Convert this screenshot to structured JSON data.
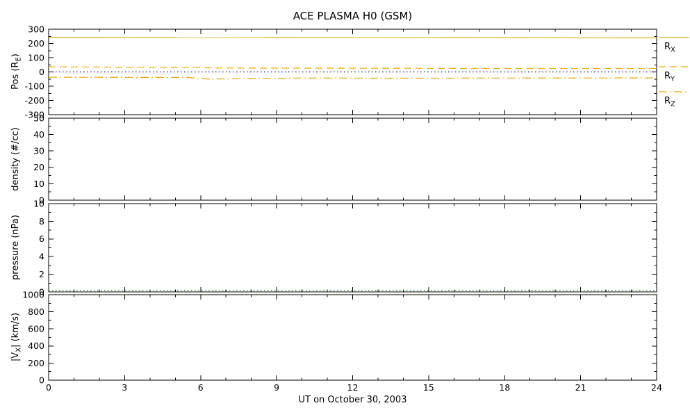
{
  "chart_data": {
    "type": "line",
    "title": "ACE PLASMA H0 (GSM)",
    "xlabel": "UT on October 30, 2003",
    "x_range": [
      0,
      24
    ],
    "xticks": [
      0,
      3,
      6,
      9,
      12,
      15,
      18,
      21,
      24
    ],
    "x_minor_step": 1,
    "panels": [
      {
        "id": "position",
        "ylabel": {
          "pre": "Pos (R",
          "sub": "E",
          "post": ")"
        },
        "ylim": [
          -300,
          300
        ],
        "yticks": [
          300,
          200,
          100,
          0,
          -100,
          -200,
          -300
        ],
        "series": [
          {
            "name": "R_X",
            "color": "#d4b106",
            "dash": "solid",
            "x": [
              0,
              24
            ],
            "y": [
              241,
              239
            ]
          },
          {
            "name": "R_Y",
            "color": "#f5a800",
            "dash": "dashed",
            "x": [
              0,
              2,
              4,
              6,
              6.5,
              8,
              12,
              16,
              20,
              24
            ],
            "y": [
              36,
              34,
              33,
              31,
              28,
              27,
              26,
              25,
              24,
              24
            ]
          },
          {
            "name": "zero-reference",
            "color": "#000066",
            "dash": "dotted",
            "x": [
              0,
              24
            ],
            "y": [
              0,
              0
            ]
          },
          {
            "name": "R_Z",
            "color": "#eda400",
            "dash": "dashdot",
            "x": [
              0,
              3,
              5.5,
              6.3,
              7,
              8,
              10,
              14,
              18,
              24
            ],
            "y": [
              -37,
              -38,
              -39,
              -50,
              -49,
              -46,
              -43,
              -44,
              -43,
              -42
            ]
          }
        ]
      },
      {
        "id": "density",
        "ylabel": {
          "pre": "density (#/cc)",
          "sub": "",
          "post": ""
        },
        "ylim": [
          0,
          50
        ],
        "yticks": [
          50,
          40,
          30,
          20,
          10,
          0
        ],
        "series": []
      },
      {
        "id": "pressure",
        "ylabel": {
          "pre": "pressure (nPa)",
          "sub": "",
          "post": ""
        },
        "ylim": [
          0,
          10
        ],
        "yticks": [
          10,
          8,
          6,
          4,
          2,
          0
        ],
        "series": [
          {
            "name": "pressure",
            "color": "#007f00",
            "dash": "dotted",
            "x": [
              0,
              24
            ],
            "y": [
              0.15,
              0.15
            ]
          }
        ]
      },
      {
        "id": "vx",
        "ylabel": {
          "pre": "|V",
          "sub": "X",
          "post": "| (km/s)"
        },
        "ylim": [
          0,
          1000
        ],
        "yticks": [
          1000,
          800,
          600,
          400,
          200,
          0
        ],
        "series": []
      }
    ]
  },
  "legend": [
    {
      "base": "R",
      "sub": "X",
      "color": "#d4b106",
      "dash": "solid"
    },
    {
      "base": "R",
      "sub": "Y",
      "color": "#f5a800",
      "dash": "dashed"
    },
    {
      "base": "R",
      "sub": "Z",
      "color": "#eda400",
      "dash": "dashdot"
    }
  ]
}
